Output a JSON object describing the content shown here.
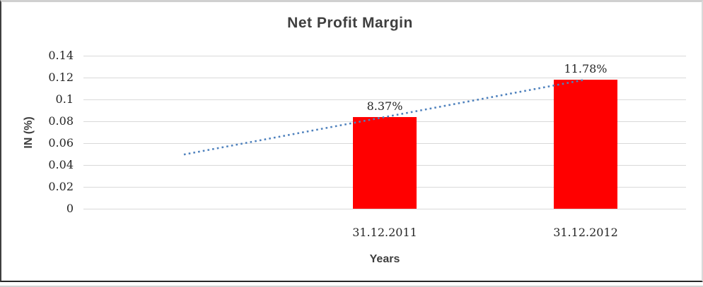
{
  "chart_data": {
    "type": "bar",
    "title": "Net Profit Margin",
    "xlabel": "Years",
    "ylabel": "IN (%)",
    "categories": [
      "",
      "31.12.2011",
      "31.12.2012"
    ],
    "values": [
      null,
      0.0837,
      0.1178
    ],
    "data_labels": [
      "",
      "8.37%",
      "11.78%"
    ],
    "yticks": [
      "0.14",
      "0.12",
      "0.1",
      "0.08",
      "0.06",
      "0.04",
      "0.02",
      "0"
    ],
    "ylim": [
      0,
      0.14
    ],
    "grid": true,
    "legend": "none",
    "bar_color": "#FF0000",
    "gridline_color": "#d9d9d9",
    "trendline": {
      "style": "dotted",
      "color": "#4E81BD",
      "from_category": 1,
      "to_category": 3,
      "from_value": 0.0496,
      "to_value": 0.1178
    }
  }
}
